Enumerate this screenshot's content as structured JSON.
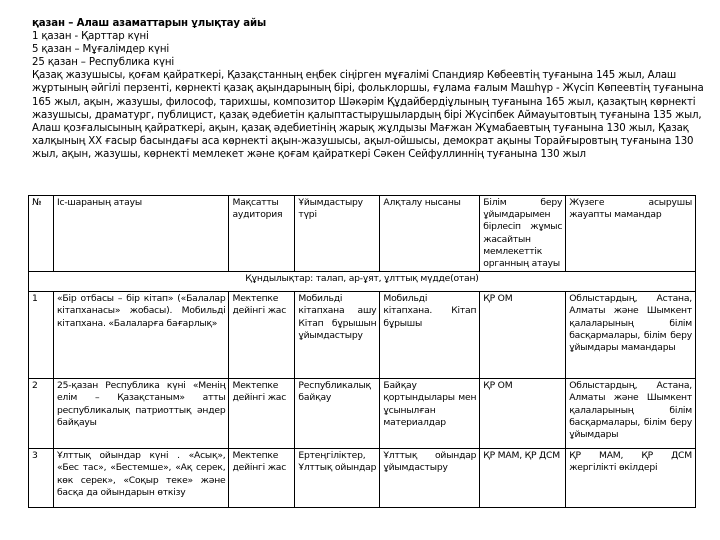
{
  "intro": {
    "title": "қазан – Алаш азаматтарын ұлықтау айы",
    "dates": [
      "1 қазан - Қарттар күні",
      "5 қазан – Мұғалімдер күні",
      "25 қазан – Республика күні"
    ],
    "paragraph_lines": [
      "Қазақ  жазушысы, қоғам қайраткері, Қазақстанның еңбек сіңірген мұғалімі Спандияр Көбеевтің туғанына 145 жыл, Алаш",
      "жұртының әйгілі перзенті, көрнекті қазақ ақындарының бірі, фольклоршы, ғұлама ғалым Машһүр - Жүсіп Көпеевтің туғанына",
      "165 жыл, ақын, жазушы, философ, тарихшы, композитор Шәкәрім Құдайбердіұлының туғанына 165 жыл, қазақтың көрнекті",
      "жазушысы, драматург, публицист, қазақ әдебиетін қалыптастырушылардың бірі Жүсіпбек Аймауытовтың туғанына 135 жыл,",
      "Алаш қозғалысының қайраткері, ақын, қазақ әдебиетінің жарық жұлдызы Мағжан Жұмабаевтың туғанына 130 жыл, Қазақ",
      "халқының ХХ ғасыр басындағы аса көрнекті ақын-жазушысы, ақыл-ойшысы, демократ ақыны Торайғыровтың туғанына 130",
      "жыл, ақын, жазушы, көрнекті мемлекет және қоғам қайраткері Сәкен Сейфуллиннің туғанына 130 жыл"
    ]
  },
  "table": {
    "headers": [
      "№",
      "Іс-шараның атауы",
      "Мақсатты аудитория",
      "Ұйымдастыру түрі",
      "Алқталу нысаны",
      "Білім беру ұйымдарымен бірлесіп жұмыс жасайтын мемлекеттік органның атауы",
      "Жүзеге асырушы жауапты мамандар"
    ],
    "values_row": "Құндылықтар: талап, ар-ұят, ұлттық мүдде(отан)",
    "rows": [
      [
        "1",
        "«Бір отбасы – бір кітап» («Балалар кітапханасы» жобасы). Мобильді кітапхана. «Балаларға бағарлық»",
        "Мектепке дейінгі жас",
        "Мобильді кітапхана ашу Кітап бұрышын ұйымдастыру",
        "Мобильді кітапхана. Кітап бұрышы",
        "ҚР ОМ",
        "Облыстардың, Астана, Алматы және Шымкент қалаларының білім басқармалары, білім беру ұйымдары мамандары"
      ],
      [
        "2",
        "25-қазан Республика күні «Менің елім – Қазақстаным» атты республикалық патриоттық әндер байқауы",
        "Мектепке дейінгі жас",
        "Республикалық байқау",
        "Байқау қортындылары мен ұсынылған материалдар",
        "ҚР ОМ",
        "Облыстардың, Астана, Алматы және Шымкент қалаларының білім басқармалары, білім беру ұйымдары"
      ],
      [
        "3",
        "Ұлттық ойындар күні . «Асық», «Бес тас», «Бестемше», «Ақ серек, көк серек», «Соқыр теке» және басқа да ойындарын өткізу",
        "Мектепке дейінгі жас",
        "Ертеңгіліктер, Ұлттық ойындар",
        "Ұлттық ойындар ұйымдастыру",
        "ҚР МАМ, ҚР ДСМ",
        "ҚР МАМ, ҚР ДСМ жергілікті өкілдері"
      ]
    ]
  }
}
